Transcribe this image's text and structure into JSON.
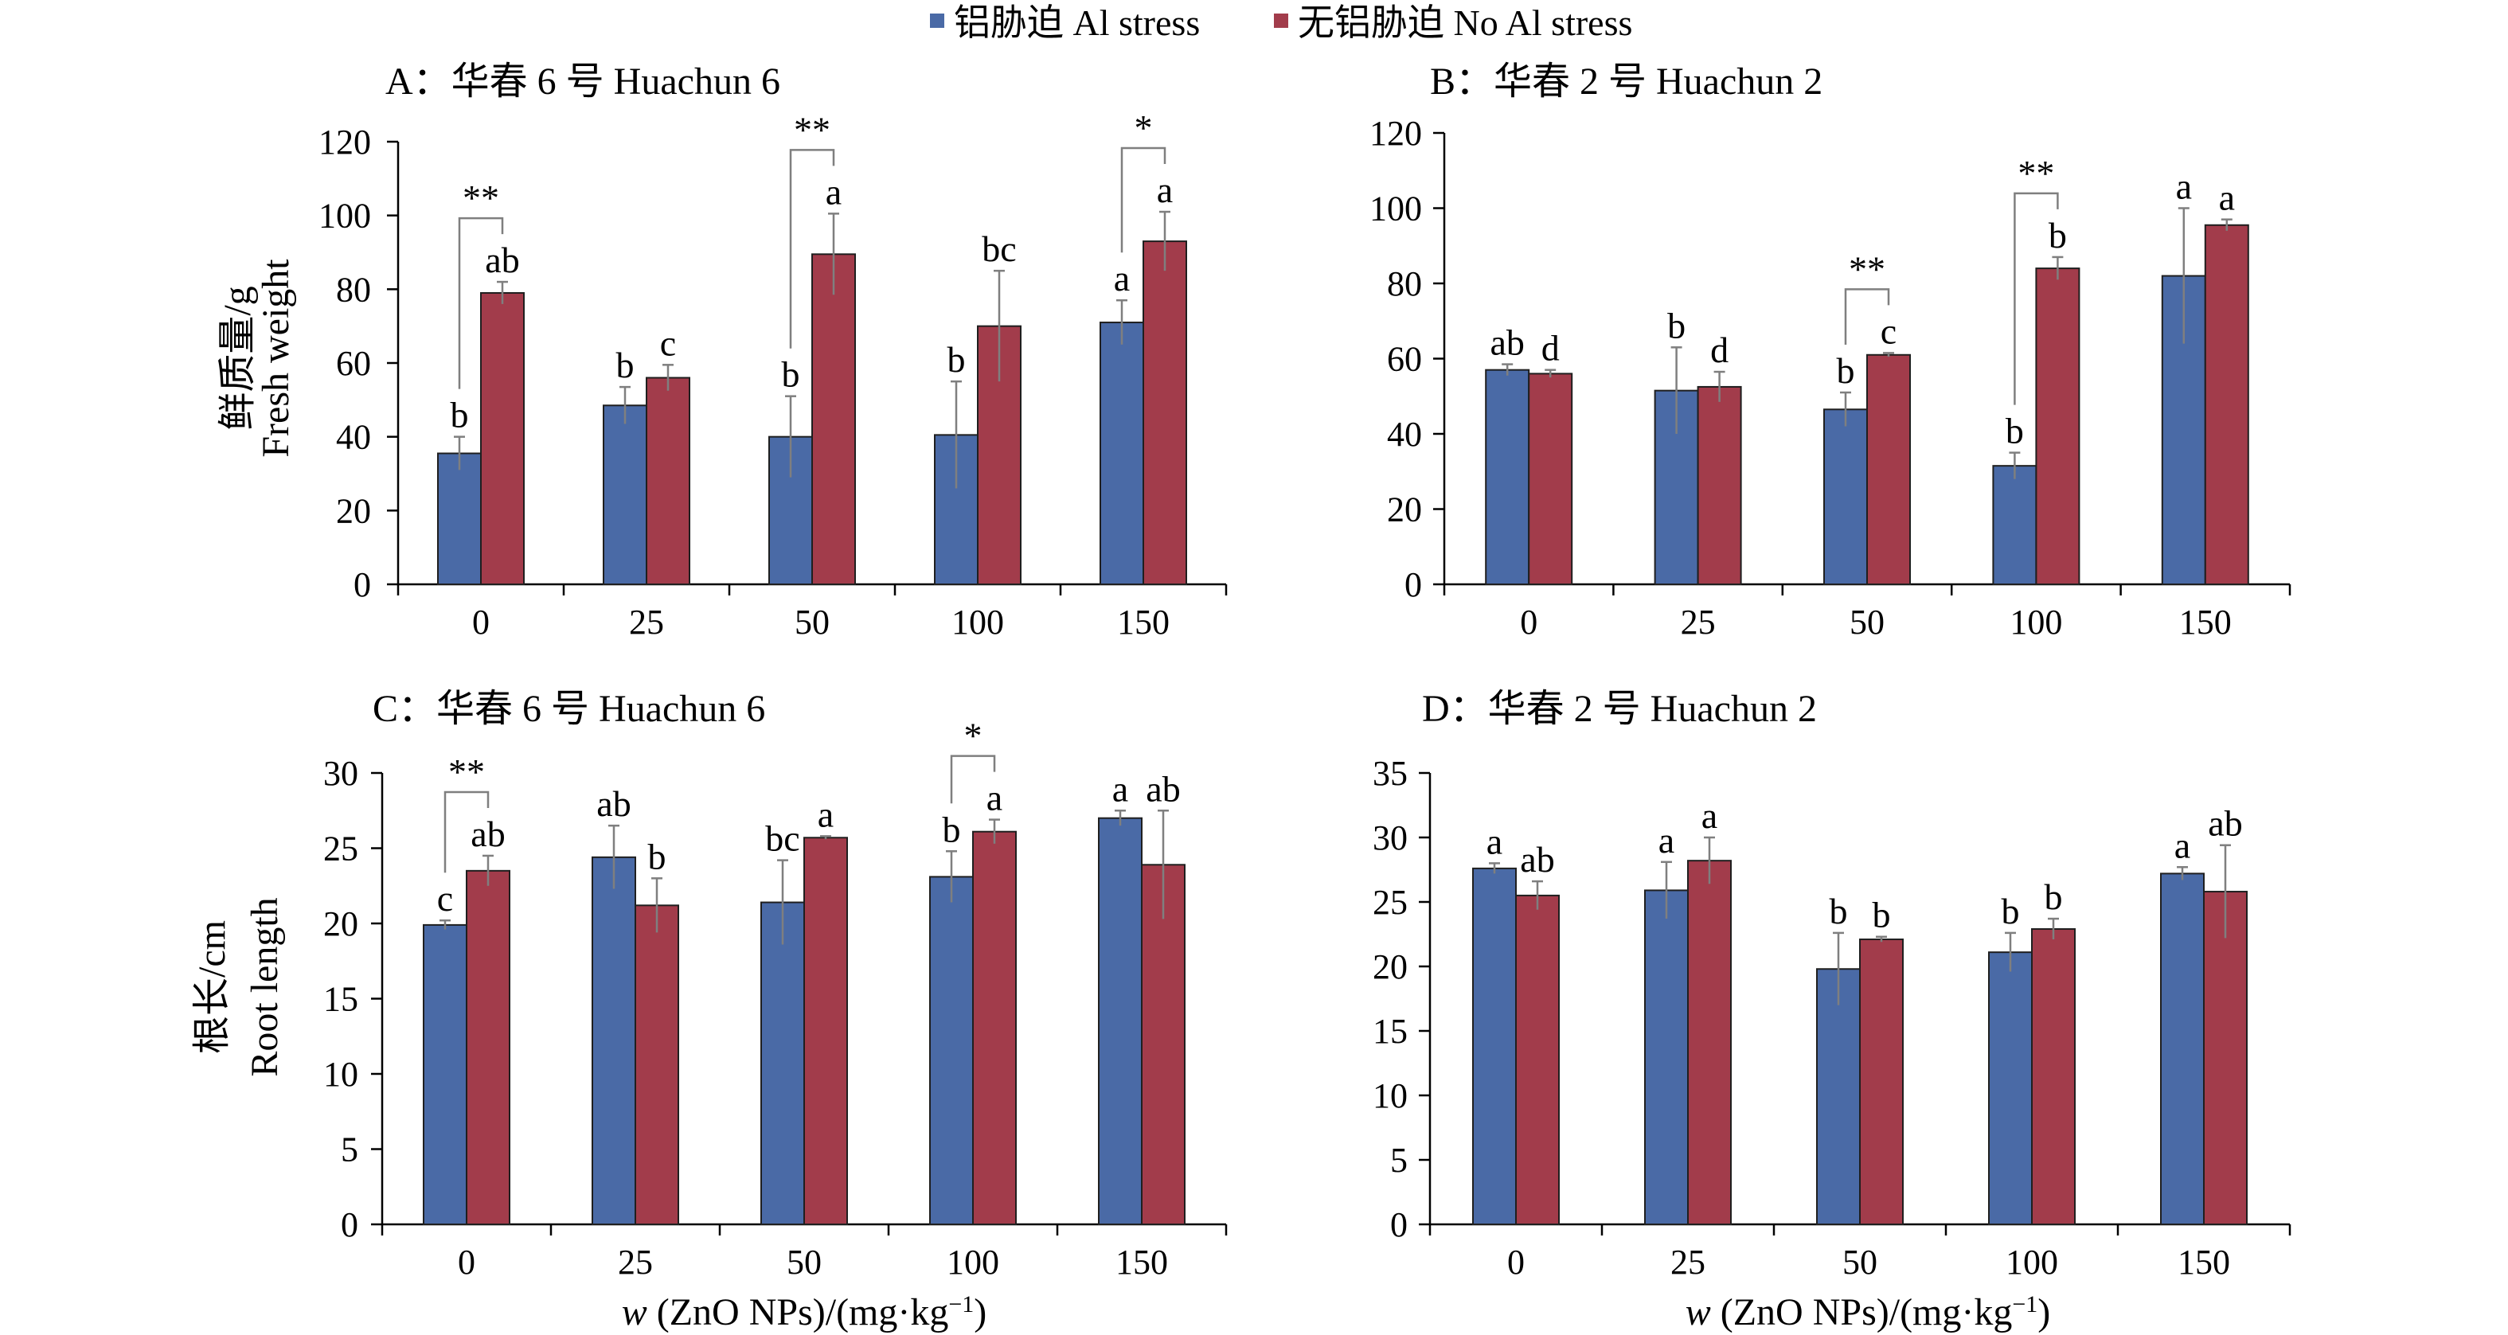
{
  "legend": {
    "items": [
      {
        "label": "铝胁迫 Al stress",
        "color": "#4a6aa6"
      },
      {
        "label": "无铝胁迫 No Al stress",
        "color": "#a23c4b"
      }
    ]
  },
  "x_axis_label": {
    "prefix": "w",
    "rest": " (ZnO NPs)/(mg·kg",
    "sup": "−1",
    "close": ")"
  },
  "colors": {
    "al_stress": "#4a6aa6",
    "no_al_stress": "#a23c4b",
    "error_bar": "#7f7f7f"
  },
  "chart_data": [
    {
      "id": "A",
      "type": "bar",
      "title": "A：华春 6 号 Huachun 6",
      "ylabel_cn": "鲜质量/g",
      "ylabel_en": "Fresh weight",
      "categories": [
        "0",
        "25",
        "50",
        "100",
        "150"
      ],
      "ylim": [
        0,
        120
      ],
      "yticks": [
        0,
        20,
        40,
        60,
        80,
        100,
        120
      ],
      "series": [
        {
          "name": "铝胁迫 Al stress",
          "values": [
            35.5,
            48.5,
            40,
            40.5,
            71
          ],
          "errors": [
            4.5,
            5,
            11,
            14.5,
            6
          ],
          "letters": [
            "b",
            "b",
            "b",
            "b",
            "a"
          ]
        },
        {
          "name": "无铝胁迫 No Al stress",
          "values": [
            79,
            56,
            89.5,
            70,
            93
          ],
          "errors": [
            3,
            3.5,
            11,
            15,
            8
          ],
          "letters": [
            "ab",
            "c",
            "a",
            "bc",
            "a"
          ]
        }
      ],
      "brackets": [
        {
          "category": 0,
          "label": "**"
        },
        {
          "category": 2,
          "label": "**"
        },
        {
          "category": 4,
          "label": "*"
        }
      ]
    },
    {
      "id": "B",
      "type": "bar",
      "title": "B：华春 2 号 Huachun 2",
      "categories": [
        "0",
        "25",
        "50",
        "100",
        "150"
      ],
      "ylim": [
        0,
        120
      ],
      "yticks": [
        0,
        20,
        40,
        60,
        80,
        100,
        120
      ],
      "series": [
        {
          "name": "铝胁迫 Al stress",
          "values": [
            57,
            51.5,
            46.5,
            31.5,
            82
          ],
          "errors": [
            1.5,
            11.5,
            4.5,
            3.5,
            18
          ],
          "letters": [
            "ab",
            "b",
            "b",
            "b",
            "a"
          ]
        },
        {
          "name": "无铝胁迫 No Al stress",
          "values": [
            56,
            52.5,
            61,
            84,
            95.5
          ],
          "errors": [
            1,
            4,
            0.5,
            3,
            1.5
          ],
          "letters": [
            "d",
            "d",
            "c",
            "b",
            "a"
          ]
        }
      ],
      "brackets": [
        {
          "category": 2,
          "label": "**"
        },
        {
          "category": 3,
          "label": "**"
        }
      ]
    },
    {
      "id": "C",
      "type": "bar",
      "title": "C：华春 6 号 Huachun 6",
      "ylabel_cn": "根长/cm",
      "ylabel_en": "Root length",
      "categories": [
        "0",
        "25",
        "50",
        "100",
        "150"
      ],
      "ylim": [
        0,
        30
      ],
      "yticks": [
        0,
        5,
        10,
        15,
        20,
        25,
        30
      ],
      "series": [
        {
          "name": "铝胁迫 Al stress",
          "values": [
            19.9,
            24.4,
            21.4,
            23.1,
            27
          ],
          "errors": [
            0.3,
            2.1,
            2.8,
            1.7,
            0.5
          ],
          "letters": [
            "c",
            "ab",
            "bc",
            "b",
            "a"
          ]
        },
        {
          "name": "无铝胁迫 No Al stress",
          "values": [
            23.5,
            21.2,
            25.7,
            26.1,
            23.9
          ],
          "errors": [
            1,
            1.8,
            0.1,
            0.8,
            3.6
          ],
          "letters": [
            "ab",
            "b",
            "a",
            "a",
            "ab"
          ]
        }
      ],
      "brackets": [
        {
          "category": 0,
          "label": "**"
        },
        {
          "category": 3,
          "label": "*"
        }
      ]
    },
    {
      "id": "D",
      "type": "bar",
      "title": "D：华春 2 号 Huachun 2",
      "categories": [
        "0",
        "25",
        "50",
        "100",
        "150"
      ],
      "ylim": [
        0,
        35
      ],
      "yticks": [
        0,
        5,
        10,
        15,
        20,
        25,
        30,
        35
      ],
      "series": [
        {
          "name": "铝胁迫 Al stress",
          "values": [
            27.6,
            25.9,
            19.8,
            21.1,
            27.2
          ],
          "errors": [
            0.4,
            2.2,
            2.8,
            1.5,
            0.5
          ],
          "letters": [
            "a",
            "a",
            "b",
            "b",
            "a"
          ]
        },
        {
          "name": "无铝胁迫 No Al stress",
          "values": [
            25.5,
            28.2,
            22.1,
            22.9,
            25.8
          ],
          "errors": [
            1.1,
            1.8,
            0.2,
            0.8,
            3.6
          ],
          "letters": [
            "ab",
            "a",
            "b",
            "b",
            "ab"
          ]
        }
      ],
      "brackets": []
    }
  ]
}
